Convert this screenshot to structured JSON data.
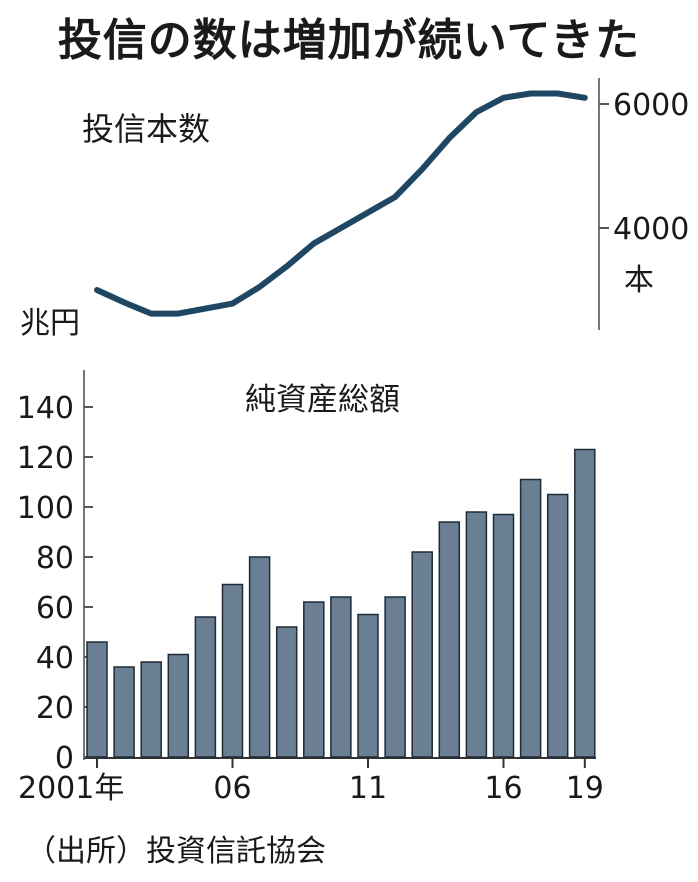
{
  "title": "投信の数は増加が続いてきた",
  "source": "（出所）投資信託協会",
  "chart_data": [
    {
      "type": "line",
      "title": "投信本数",
      "unit": "本",
      "x": [
        2001,
        2002,
        2003,
        2004,
        2005,
        2006,
        2007,
        2008,
        2009,
        2010,
        2011,
        2012,
        2013,
        2014,
        2015,
        2016,
        2017,
        2018,
        2019
      ],
      "values": [
        3000,
        2800,
        2620,
        2620,
        2700,
        2780,
        3050,
        3380,
        3750,
        4000,
        4250,
        4500,
        4950,
        5450,
        5870,
        6100,
        6170,
        6170,
        6100
      ],
      "y_ticks": [
        4000,
        6000
      ],
      "y_tick_labels": [
        "4000",
        "6000"
      ],
      "ylim": [
        2600,
        6200
      ],
      "color": "#1f4663"
    },
    {
      "type": "bar",
      "title": "純資産総額",
      "unit": "兆円",
      "categories": [
        2001,
        2002,
        2003,
        2004,
        2005,
        2006,
        2007,
        2008,
        2009,
        2010,
        2011,
        2012,
        2013,
        2014,
        2015,
        2016,
        2017,
        2018,
        2019
      ],
      "values": [
        46,
        36,
        38,
        41,
        56,
        69,
        80,
        52,
        62,
        64,
        57,
        64,
        82,
        94,
        98,
        97,
        111,
        105,
        123
      ],
      "x_tick_labels": [
        {
          "year": 2001,
          "label": "2001年"
        },
        {
          "year": 2006,
          "label": "06"
        },
        {
          "year": 2011,
          "label": "11"
        },
        {
          "year": 2016,
          "label": "16"
        },
        {
          "year": 2019,
          "label": "19"
        }
      ],
      "y_ticks": [
        0,
        20,
        40,
        60,
        80,
        100,
        120,
        140
      ],
      "y_tick_labels": [
        "0",
        "20",
        "40",
        "60",
        "80",
        "100",
        "120",
        "140"
      ],
      "ylim": [
        0,
        148
      ],
      "bar_color": "#6a7f93"
    }
  ]
}
